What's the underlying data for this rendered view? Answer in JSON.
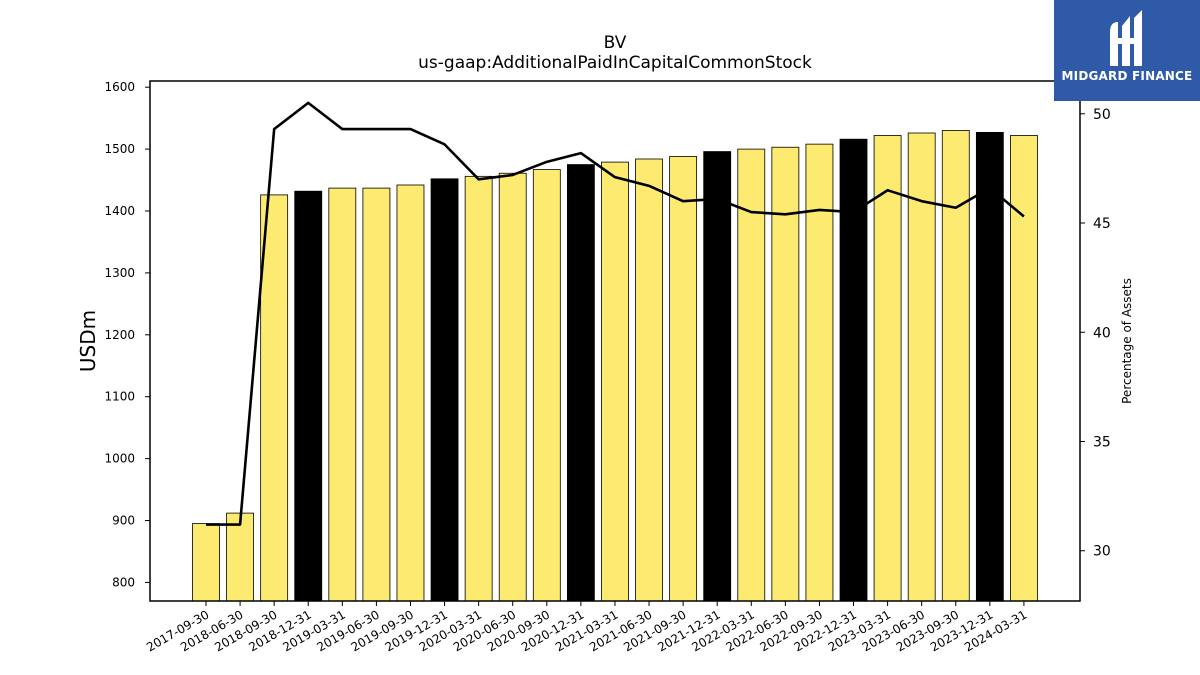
{
  "chart_data": {
    "type": "bar",
    "title": "BV",
    "subtitle": "us-gaap:AdditionalPaidInCapitalCommonStock",
    "ylabel": "USDm",
    "y2label": "Percentage of Assets",
    "categories": [
      "2017-09-30",
      "2018-06-30",
      "2018-09-30",
      "2018-12-31",
      "2019-03-31",
      "2019-06-30",
      "2019-09-30",
      "2019-12-31",
      "2020-03-31",
      "2020-06-30",
      "2020-09-30",
      "2020-12-31",
      "2021-03-31",
      "2021-06-30",
      "2021-09-30",
      "2021-12-31",
      "2022-03-31",
      "2022-06-30",
      "2022-09-30",
      "2022-12-31",
      "2023-03-31",
      "2023-06-30",
      "2023-09-30",
      "2023-12-31",
      "2024-03-31"
    ],
    "series": [
      {
        "type": "bar",
        "values": [
          895,
          912,
          1426,
          1432,
          1437,
          1437,
          1442,
          1452,
          1456,
          1461,
          1467,
          1475,
          1479,
          1484,
          1488,
          1496,
          1500,
          1503,
          1508,
          1516,
          1522,
          1526,
          1530,
          1527,
          1522
        ],
        "colors": [
          "#fdeb71",
          "#fdeb71",
          "#fdeb71",
          "#000000",
          "#fdeb71",
          "#fdeb71",
          "#fdeb71",
          "#000000",
          "#fdeb71",
          "#fdeb71",
          "#fdeb71",
          "#000000",
          "#fdeb71",
          "#fdeb71",
          "#fdeb71",
          "#000000",
          "#fdeb71",
          "#fdeb71",
          "#fdeb71",
          "#000000",
          "#fdeb71",
          "#fdeb71",
          "#fdeb71",
          "#000000",
          "#fdeb71"
        ]
      },
      {
        "type": "line",
        "axis": "right",
        "color": "#000000",
        "values": [
          31.2,
          31.2,
          49.3,
          50.5,
          49.3,
          49.3,
          49.3,
          48.6,
          47.0,
          47.2,
          47.8,
          48.2,
          47.1,
          46.7,
          46.0,
          46.1,
          45.5,
          45.4,
          45.6,
          45.5,
          46.5,
          46.0,
          45.7,
          46.6,
          45.3
        ]
      }
    ],
    "ylim": [
      770,
      1610
    ],
    "yticks": [
      800,
      900,
      1000,
      1100,
      1200,
      1300,
      1400,
      1500,
      1600
    ],
    "y2lim": [
      27.7,
      51.5
    ],
    "y2ticks": [
      30,
      35,
      40,
      45,
      50
    ],
    "bar_colors": {
      "yellow": "#fdeb71",
      "black": "#000000"
    }
  },
  "logo": {
    "text": "MIDGARD FINANCE",
    "color": "#2f5aa8"
  }
}
